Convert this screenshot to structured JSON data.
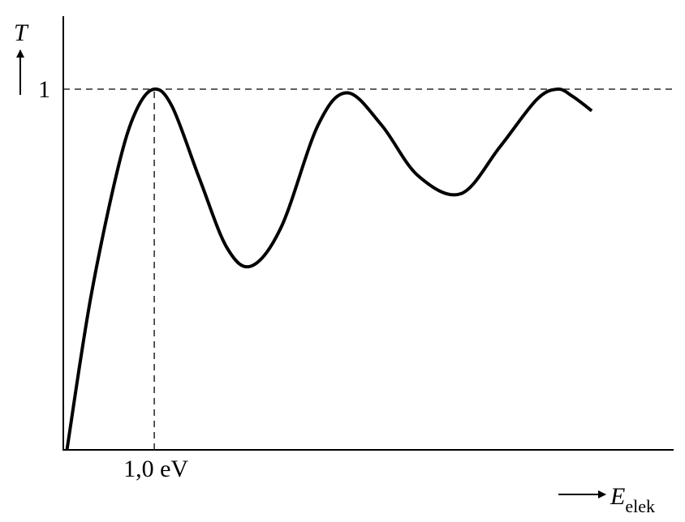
{
  "chart_data": {
    "type": "line",
    "ylabel": "T",
    "xlabel": "E",
    "xlabel_subscript": "elek",
    "x": [
      0.04,
      0.3,
      0.6,
      0.8,
      1.0,
      1.2,
      1.5,
      1.8,
      2.07,
      2.4,
      2.8,
      3.12,
      3.5,
      3.9,
      4.37,
      4.8,
      5.2,
      5.43,
      5.6,
      5.81
    ],
    "values": [
      0,
      0.42,
      0.78,
      0.94,
      1.0,
      0.95,
      0.75,
      0.56,
      0.51,
      0.62,
      0.9,
      0.99,
      0.9,
      0.76,
      0.71,
      0.84,
      0.97,
      1.0,
      0.98,
      0.94
    ],
    "color": "#000000",
    "xlim": [
      0,
      6.71
    ],
    "ylim": [
      0,
      1.2
    ],
    "xticks": [
      {
        "value": 1,
        "label": "1,0 eV"
      }
    ],
    "yticks": [
      1
    ],
    "dashed_tick_lines": true
  }
}
